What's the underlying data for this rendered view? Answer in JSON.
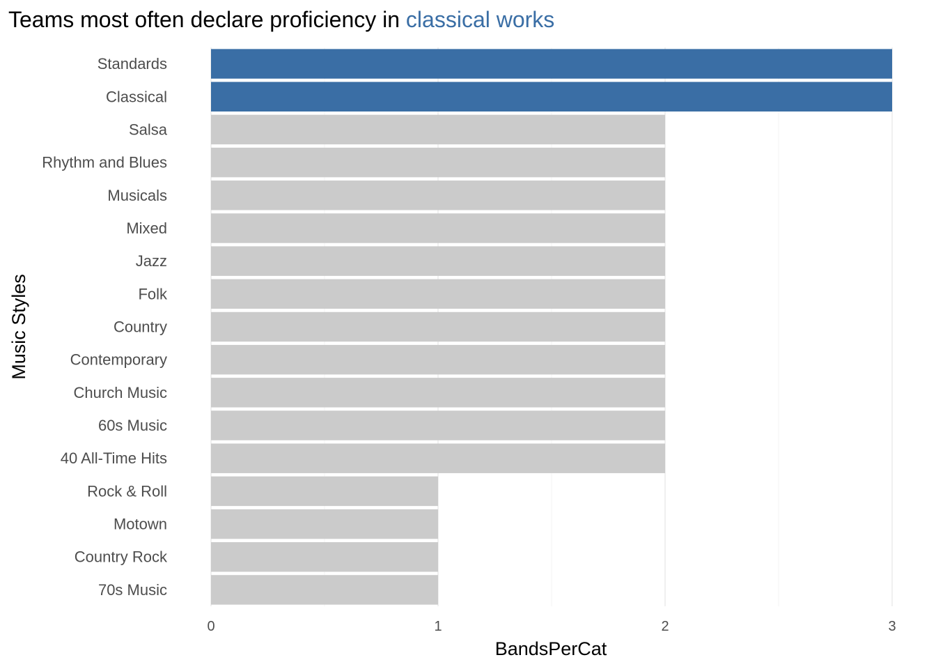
{
  "colors": {
    "highlight": "#3a6ea5",
    "base": "#cbcbcb",
    "title_highlight": "#3a6ea5"
  },
  "chart_data": {
    "type": "bar",
    "orientation": "horizontal",
    "title": {
      "prefix": "Teams most often declare proficiency in ",
      "highlight": "classical works"
    },
    "xlabel": "BandsPerCat",
    "ylabel": "Music Styles",
    "xlim": [
      0,
      3
    ],
    "x_ticks": [
      "0",
      "1",
      "2",
      "3"
    ],
    "grid": true,
    "legend": "none",
    "categories": [
      "Standards",
      "Classical",
      "Salsa",
      "Rhythm and Blues",
      "Musicals",
      "Mixed",
      "Jazz",
      "Folk",
      "Country",
      "Contemporary",
      "Church Music",
      "60s Music",
      "40 All-Time Hits",
      "Rock & Roll",
      "Motown",
      "Country Rock",
      "70s Music"
    ],
    "values": [
      3,
      3,
      2,
      2,
      2,
      2,
      2,
      2,
      2,
      2,
      2,
      2,
      2,
      1,
      1,
      1,
      1
    ],
    "highlighted": [
      "Standards",
      "Classical"
    ]
  }
}
